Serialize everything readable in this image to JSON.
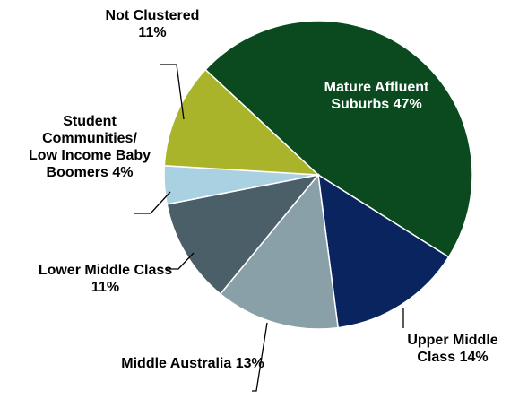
{
  "chart_data": {
    "type": "pie",
    "categories": [
      "Mature Affluent Suburbs",
      "Upper Middle Class",
      "Middle Australia",
      "Lower Middle Class",
      "Student Communities/ Low Income Baby Boomers",
      "Not Clustered"
    ],
    "values": [
      47,
      14,
      13,
      11,
      4,
      11
    ],
    "value_labels": [
      "47%",
      "14%",
      "13%",
      "11%",
      "4%",
      "11%"
    ],
    "colors": [
      "#0b4a1f",
      "#0a2460",
      "#8aa0a8",
      "#4a5f68",
      "#a9d1e2",
      "#a9b42a"
    ]
  }
}
